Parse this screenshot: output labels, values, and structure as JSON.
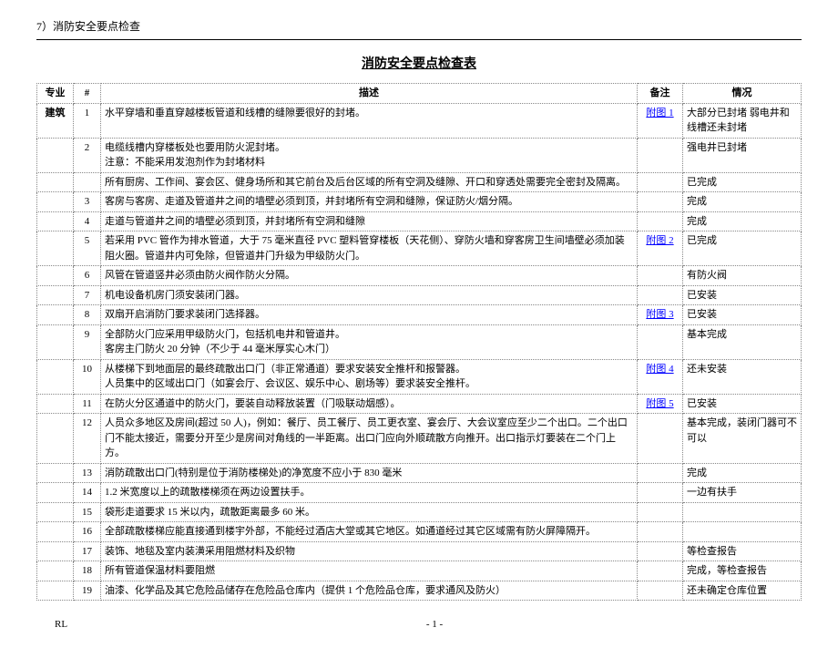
{
  "section_label": "7）消防安全要点检查",
  "title": "消防安全要点检查表",
  "columns": {
    "category": "专业",
    "num": "#",
    "desc": "描述",
    "note": "备注",
    "status": "情况"
  },
  "category_label": "建筑",
  "rows": [
    {
      "n": "1",
      "desc": "水平穿墙和垂直穿越楼板管道和线槽的缝隙要很好的封堵。",
      "note": "附图 1",
      "note_link": true,
      "status": "大部分已封堵 弱电井和线槽还未封堵"
    },
    {
      "n": "2",
      "desc": "电缆线槽内穿楼板处也要用防火泥封堵。\n注意：不能采用发泡剂作为封堵材料",
      "note": "",
      "status": "强电井已封堵"
    },
    {
      "n": "",
      "desc": "所有厨房、工作间、宴会区、健身场所和其它前台及后台区域的所有空洞及缝隙、开口和穿透处需要完全密封及隔离。",
      "note": "",
      "status": "已完成"
    },
    {
      "n": "3",
      "desc": "客房与客房、走道及管道井之间的墙壁必须到顶，并封堵所有空洞和缝隙，保证防火/烟分隔。",
      "note": "",
      "status": "完成"
    },
    {
      "n": "4",
      "desc": "走道与管道井之间的墙壁必须到顶，并封堵所有空洞和缝隙",
      "note": "",
      "status": "完成"
    },
    {
      "n": "5",
      "desc": "若采用 PVC 管作为排水管道，大于 75 毫米直径 PVC 塑料管穿楼板（天花侧）、穿防火墙和穿客房卫生间墙壁必须加装阻火圈。管道井内可免除，但管道井门升级为甲级防火门。",
      "note": "附图 2",
      "note_link": true,
      "status": "已完成"
    },
    {
      "n": "6",
      "desc": "风管在管道竖井必须由防火阀作防火分隔。",
      "note": "",
      "status": "有防火阀"
    },
    {
      "n": "7",
      "desc": "机电设备机房门须安装闭门器。",
      "note": "",
      "status": "已安装"
    },
    {
      "n": "8",
      "desc": "双扇开启消防门要求装闭门选择器。",
      "note": "附图 3",
      "note_link": true,
      "status": "已安装"
    },
    {
      "n": "9",
      "desc": "全部防火门应采用甲级防火门，包括机电井和管道井。\n客房主门防火 20 分钟（不少于 44 毫米厚实心木门）",
      "note": "",
      "status": "基本完成"
    },
    {
      "n": "10",
      "desc": "从楼梯下到地面层的最终疏散出口门（非正常通道）要求安装安全推杆和报警器。\n人员集中的区域出口门（如宴会厅、会议区、娱乐中心、剧场等）要求装安全推杆。",
      "note": "附图 4",
      "note_link": true,
      "status": "还未安装"
    },
    {
      "n": "11",
      "desc": "在防火分区通道中的防火门，要装自动释放装置（门吸联动烟感）。",
      "note": "附图 5",
      "note_link": true,
      "status": "已安装"
    },
    {
      "n": "12",
      "desc": "人员众多地区及房间(超过 50 人)，例如：餐厅、员工餐厅、员工更衣室、宴会厅、大会议室应至少二个出口。二个出口门不能太接近，需要分开至少是房间对角线的一半距离。出口门应向外顺疏散方向推开。出口指示灯要装在二个门上方。",
      "note": "",
      "status": "基本完成，装闭门器可不可以"
    },
    {
      "n": "13",
      "desc": "消防疏散出口门(特别是位于消防楼梯处)的净宽度不应小于 830 毫米",
      "note": "",
      "status": "完成"
    },
    {
      "n": "14",
      "desc": "1.2 米宽度以上的疏散楼梯须在两边设置扶手。",
      "note": "",
      "status": "一边有扶手"
    },
    {
      "n": "15",
      "desc": "袋形走道要求 15 米以内，疏散距离最多 60 米。",
      "note": "",
      "status": ""
    },
    {
      "n": "16",
      "desc": "全部疏散楼梯应能直接通到楼宇外部，不能经过酒店大堂或其它地区。如通道经过其它区域需有防火屏障隔开。",
      "note": "",
      "status": ""
    },
    {
      "n": "17",
      "desc": "装饰、地毯及室内装潢采用阻燃材料及织物",
      "note": "",
      "status": "等检查报告"
    },
    {
      "n": "18",
      "desc": "所有管道保温材料要阻燃",
      "note": "",
      "status": "完成，等检查报告"
    },
    {
      "n": "19",
      "desc": "油漆、化学品及其它危险品储存在危险品仓库内（提供 1 个危险品仓库，要求通风及防火）",
      "note": "",
      "status": "还未确定仓库位置"
    }
  ],
  "footer": {
    "left": "RL",
    "center": "- 1 -"
  }
}
